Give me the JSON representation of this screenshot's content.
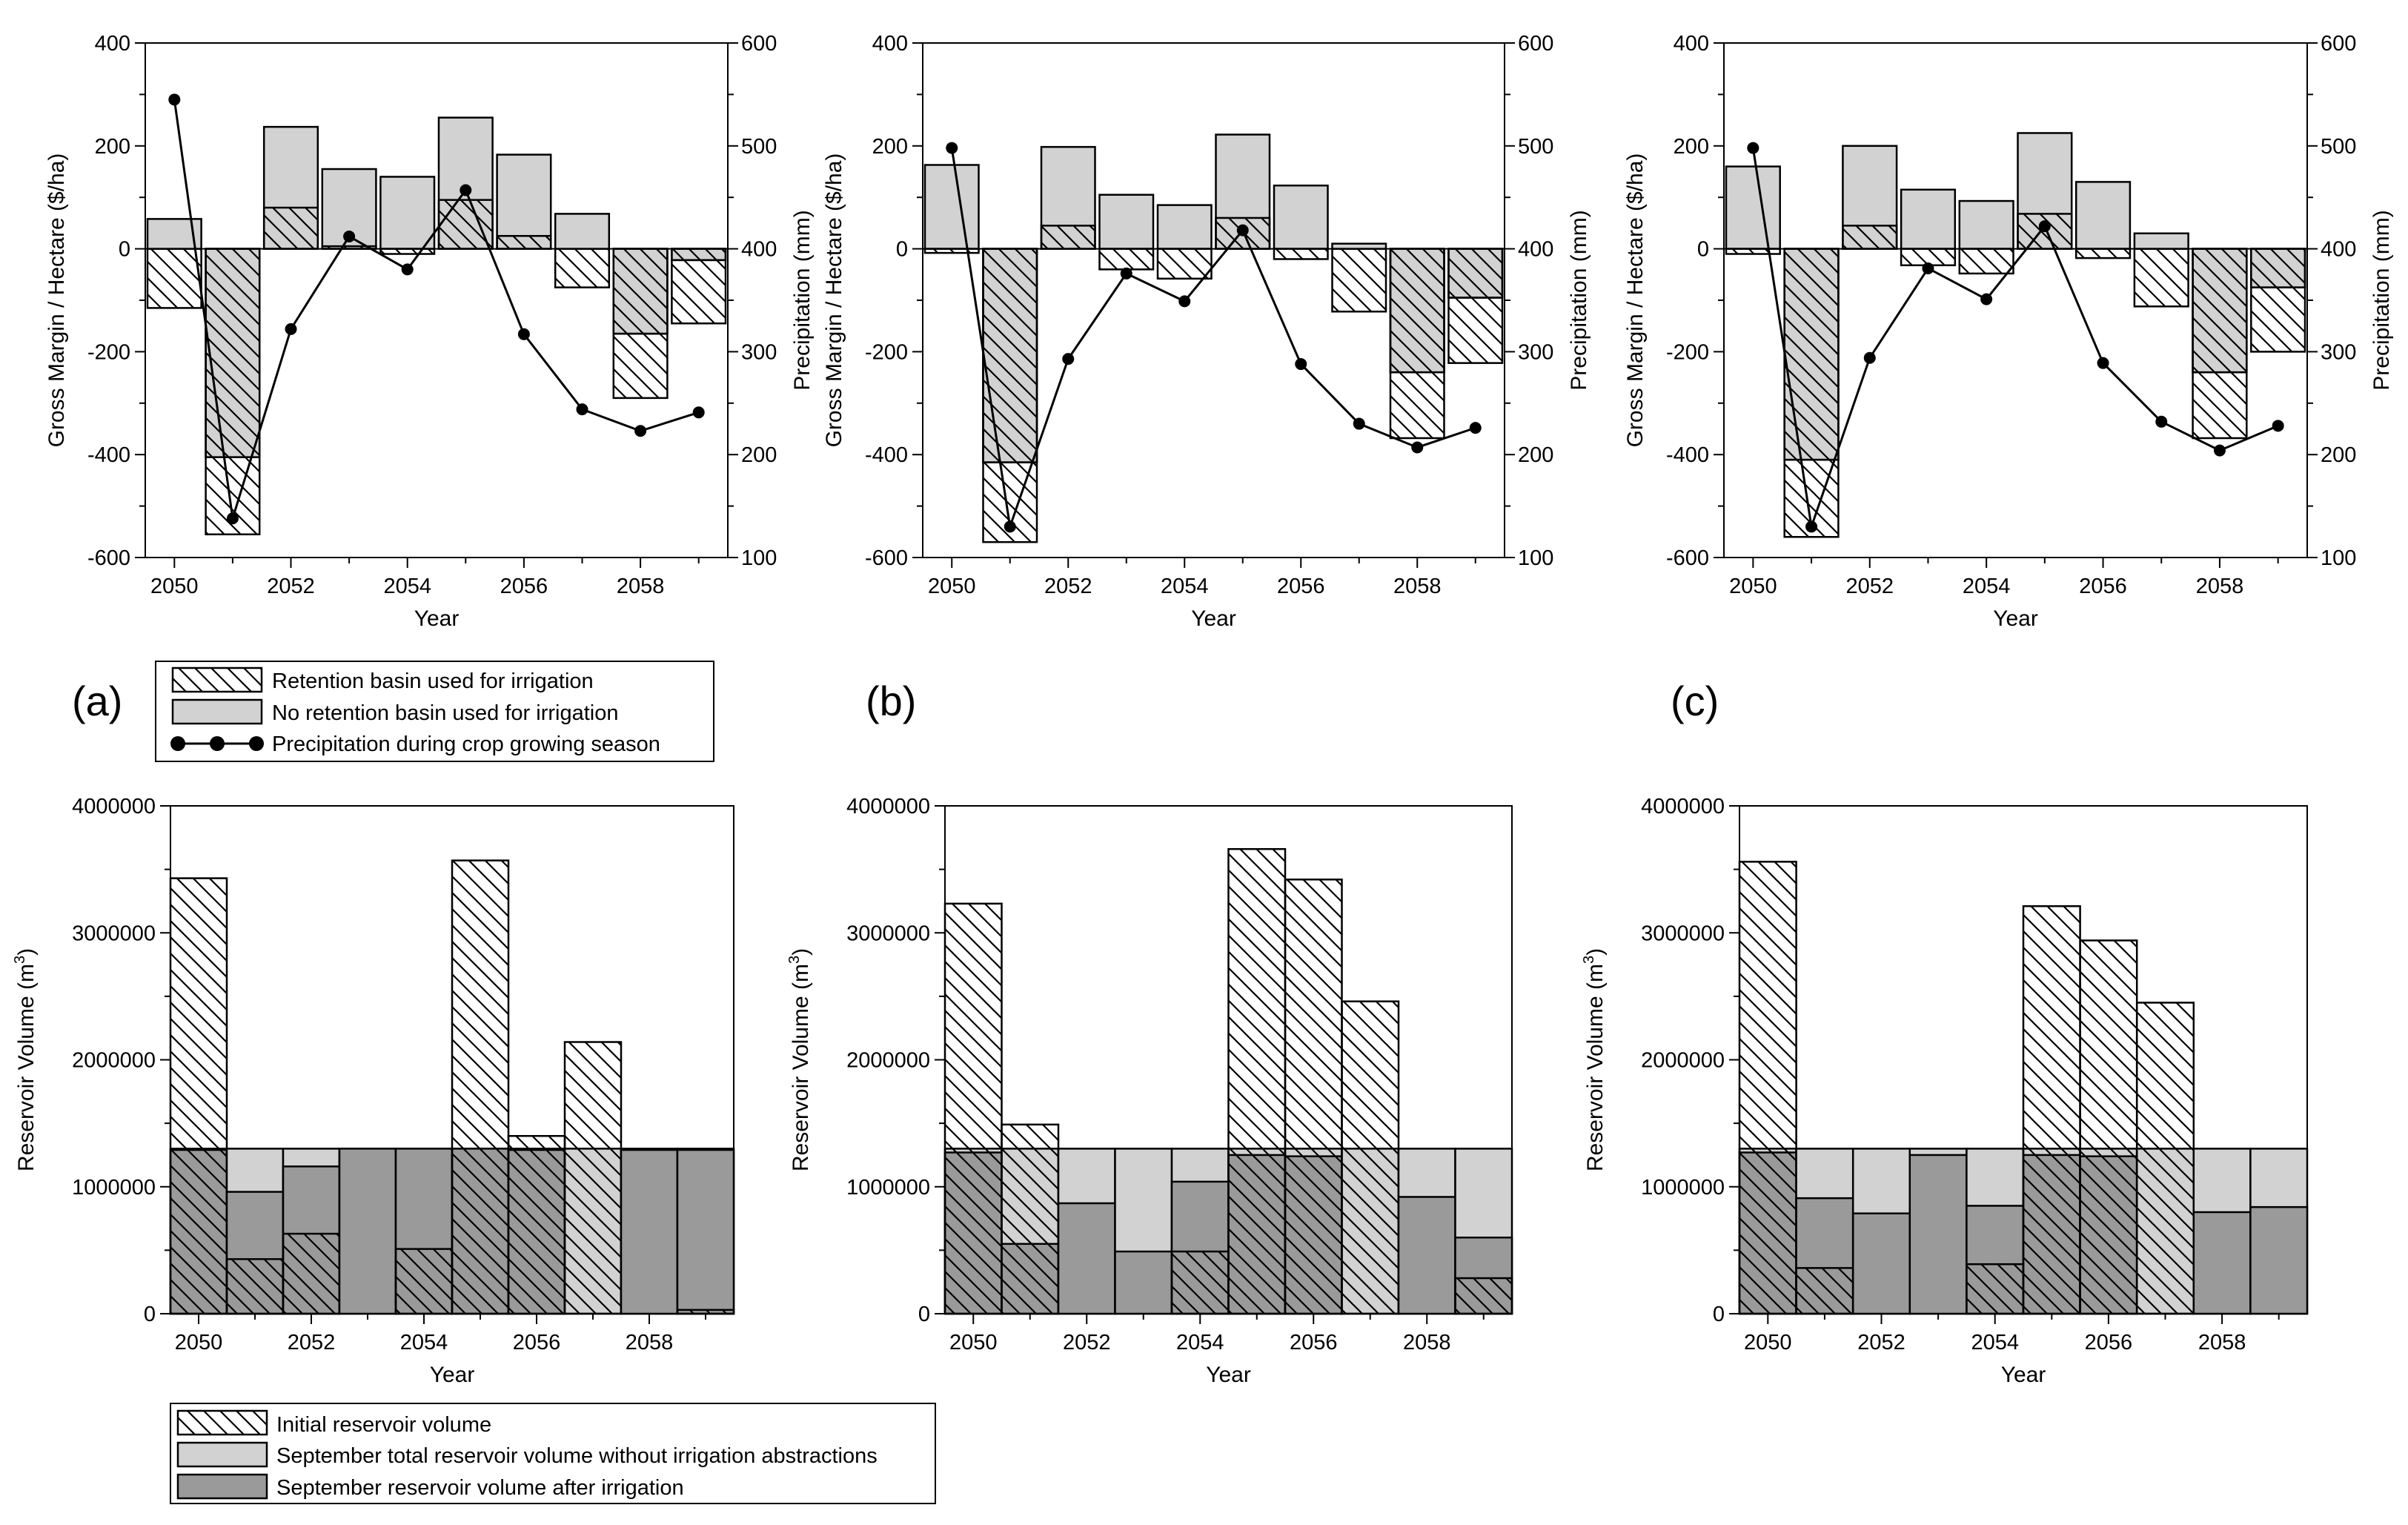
{
  "panel_labels": [
    "(a)",
    "(b)",
    "(c)"
  ],
  "colors": {
    "no_basin_fill": "#d2d2d2",
    "sep_total_fill": "#d2d2d2",
    "sep_after_fill": "#9a9a9a",
    "line": "#000000"
  },
  "legend_top": {
    "items": [
      {
        "label": "Retention basin used for irrigation",
        "swatch": "hatch"
      },
      {
        "label": "No retention basin used for irrigation",
        "swatch": "light"
      },
      {
        "label": "Precipitation during crop growing season",
        "swatch": "line"
      }
    ]
  },
  "legend_bottom": {
    "items": [
      {
        "label": "Initial reservoir volume",
        "swatch": "hatch"
      },
      {
        "label": "September total reservoir volume without irrigation abstractions",
        "swatch": "light"
      },
      {
        "label": "September reservoir volume after irrigation",
        "swatch": "dark"
      }
    ]
  },
  "chart_data": [
    {
      "panel": "(a)",
      "type": "bar+line",
      "xlabel": "Year",
      "ylabel": "Gross Margin / Hectare ($/ha)",
      "y2label": "Precipitation (mm)",
      "categories": [
        2050,
        2051,
        2052,
        2053,
        2054,
        2055,
        2056,
        2057,
        2058,
        2059
      ],
      "x_ticks": [
        2050,
        2052,
        2054,
        2056,
        2058
      ],
      "ylim": [
        -600,
        400
      ],
      "y_ticks": [
        -600,
        -400,
        -200,
        0,
        200,
        400
      ],
      "y2lim": [
        100,
        600
      ],
      "y2_ticks": [
        100,
        200,
        300,
        400,
        500,
        600
      ],
      "series": [
        {
          "name": "Retention basin used for irrigation",
          "values": [
            -115,
            -555,
            80,
            5,
            -10,
            95,
            25,
            -75,
            -290,
            -145
          ]
        },
        {
          "name": "No retention basin used for irrigation",
          "values": [
            58,
            -405,
            237,
            155,
            140,
            255,
            183,
            68,
            -165,
            -22
          ]
        },
        {
          "name": "Precipitation during crop growing season",
          "values": [
            545,
            138,
            322,
            412,
            380,
            457,
            317,
            244,
            223,
            241
          ]
        }
      ]
    },
    {
      "panel": "(b)",
      "type": "bar+line",
      "xlabel": "Year",
      "ylabel": "Gross Margin / Hectare ($/ha)",
      "y2label": "Precipitation (mm)",
      "categories": [
        2050,
        2051,
        2052,
        2053,
        2054,
        2055,
        2056,
        2057,
        2058,
        2059
      ],
      "x_ticks": [
        2050,
        2052,
        2054,
        2056,
        2058
      ],
      "ylim": [
        -600,
        400
      ],
      "y_ticks": [
        -600,
        -400,
        -200,
        0,
        200,
        400
      ],
      "y2lim": [
        100,
        600
      ],
      "y2_ticks": [
        100,
        200,
        300,
        400,
        500,
        600
      ],
      "series": [
        {
          "name": "Retention basin used for irrigation",
          "values": [
            -8,
            -570,
            45,
            -40,
            -58,
            60,
            -20,
            -122,
            -368,
            -222
          ]
        },
        {
          "name": "No retention basin used for irrigation",
          "values": [
            163,
            -415,
            198,
            105,
            85,
            222,
            123,
            10,
            -240,
            -95
          ]
        },
        {
          "name": "Precipitation during crop growing season",
          "values": [
            498,
            130,
            293,
            376,
            349,
            418,
            288,
            230,
            207,
            226
          ]
        }
      ]
    },
    {
      "panel": "(c)",
      "type": "bar+line",
      "xlabel": "Year",
      "ylabel": "Gross Margin / Hectare ($/ha)",
      "y2label": "Precipitation (mm)",
      "categories": [
        2050,
        2051,
        2052,
        2053,
        2054,
        2055,
        2056,
        2057,
        2058,
        2059
      ],
      "x_ticks": [
        2050,
        2052,
        2054,
        2056,
        2058
      ],
      "ylim": [
        -600,
        400
      ],
      "y_ticks": [
        -600,
        -400,
        -200,
        0,
        200,
        400
      ],
      "y2lim": [
        100,
        600
      ],
      "y2_ticks": [
        100,
        200,
        300,
        400,
        500,
        600
      ],
      "series": [
        {
          "name": "Retention basin used for irrigation",
          "values": [
            -10,
            -560,
            45,
            -32,
            -48,
            68,
            -18,
            -112,
            -368,
            -200
          ]
        },
        {
          "name": "No retention basin used for irrigation",
          "values": [
            160,
            -410,
            200,
            115,
            93,
            225,
            130,
            30,
            -240,
            -75
          ]
        },
        {
          "name": "Precipitation during crop growing season",
          "values": [
            498,
            130,
            294,
            381,
            351,
            422,
            289,
            232,
            204,
            228
          ]
        }
      ]
    },
    {
      "panel": "(a)",
      "type": "bar",
      "xlabel": "Year",
      "ylabel": "Reservoir Volume (m",
      "ylabel_sup": "3",
      "ylabel_end": ")",
      "categories": [
        2050,
        2051,
        2052,
        2053,
        2054,
        2055,
        2056,
        2057,
        2058,
        2059
      ],
      "x_ticks": [
        2050,
        2052,
        2054,
        2056,
        2058
      ],
      "ylim": [
        0,
        4000000
      ],
      "y_ticks": [
        0,
        1000000,
        2000000,
        3000000,
        4000000
      ],
      "series": [
        {
          "name": "Initial reservoir volume",
          "values": [
            3430000,
            430000,
            630000,
            0,
            510000,
            3570000,
            1400000,
            2140000,
            0,
            30000
          ]
        },
        {
          "name": "September total reservoir volume without irrigation abstractions",
          "values": [
            1300000,
            1300000,
            1300000,
            1300000,
            1300000,
            1300000,
            1300000,
            1300000,
            1300000,
            1300000
          ]
        },
        {
          "name": "September reservoir volume after irrigation",
          "values": [
            1290000,
            960000,
            1160000,
            1300000,
            1300000,
            1300000,
            1290000,
            0,
            1290000,
            1290000
          ]
        }
      ]
    },
    {
      "panel": "(b)",
      "type": "bar",
      "xlabel": "Year",
      "ylabel": "Reservoir Volume (m",
      "ylabel_sup": "3",
      "ylabel_end": ")",
      "categories": [
        2050,
        2051,
        2052,
        2053,
        2054,
        2055,
        2056,
        2057,
        2058,
        2059
      ],
      "x_ticks": [
        2050,
        2052,
        2054,
        2056,
        2058
      ],
      "ylim": [
        0,
        4000000
      ],
      "y_ticks": [
        0,
        1000000,
        2000000,
        3000000,
        4000000
      ],
      "series": [
        {
          "name": "Initial reservoir volume",
          "values": [
            3230000,
            1490000,
            0,
            0,
            490000,
            3660000,
            3420000,
            2460000,
            0,
            280000
          ]
        },
        {
          "name": "September total reservoir volume without irrigation abstractions",
          "values": [
            1300000,
            1300000,
            1300000,
            1300000,
            1300000,
            1300000,
            1300000,
            1300000,
            1300000,
            1300000
          ]
        },
        {
          "name": "September reservoir volume after irrigation",
          "values": [
            1270000,
            550000,
            870000,
            490000,
            1040000,
            1250000,
            1240000,
            0,
            920000,
            600000
          ]
        }
      ]
    },
    {
      "panel": "(c)",
      "type": "bar",
      "xlabel": "Year",
      "ylabel": "Reservoir Volume (m",
      "ylabel_sup": "3",
      "ylabel_end": ")",
      "categories": [
        2050,
        2051,
        2052,
        2053,
        2054,
        2055,
        2056,
        2057,
        2058,
        2059
      ],
      "x_ticks": [
        2050,
        2052,
        2054,
        2056,
        2058
      ],
      "ylim": [
        0,
        4000000
      ],
      "y_ticks": [
        0,
        1000000,
        2000000,
        3000000,
        4000000
      ],
      "series": [
        {
          "name": "Initial reservoir volume",
          "values": [
            3560000,
            360000,
            0,
            0,
            390000,
            3210000,
            2940000,
            2450000,
            0,
            0
          ]
        },
        {
          "name": "September total reservoir volume without irrigation abstractions",
          "values": [
            1300000,
            1300000,
            1300000,
            1300000,
            1300000,
            1300000,
            1300000,
            1300000,
            1300000,
            1300000
          ]
        },
        {
          "name": "September reservoir volume after irrigation",
          "values": [
            1270000,
            910000,
            790000,
            1250000,
            850000,
            1250000,
            1240000,
            0,
            800000,
            840000
          ]
        }
      ]
    }
  ]
}
